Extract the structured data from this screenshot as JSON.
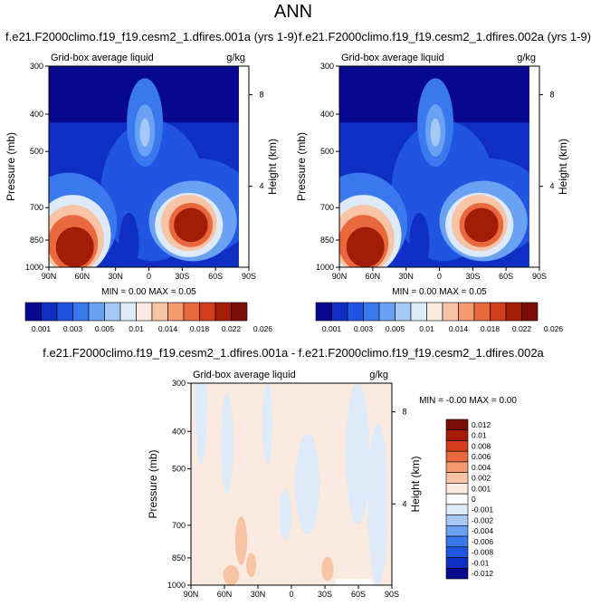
{
  "page_title": "ANN",
  "chart_data": [
    {
      "type": "heatmap",
      "title": "f.e21.F2000climo.f19_f19.cesm2_1.dfires.001a (yrs 1-9)",
      "subtitle_left": "Grid-box average liquid",
      "units": "g/kg",
      "ylabel": "Pressure (mb)",
      "ylabel_right": "Height (km)",
      "x_ticks": [
        "90N",
        "60N",
        "30N",
        "0",
        "30S",
        "60S",
        "90S"
      ],
      "y_ticks": [
        "300",
        "400",
        "500",
        "700",
        "850",
        "1000"
      ],
      "y_right_ticks": [
        "8",
        "4"
      ],
      "min_max_text": "MIN =  0.00  MAX =  0.05",
      "min": 0.0,
      "max": 0.05,
      "colorbar": {
        "orientation": "horizontal",
        "levels": [
          "0.001",
          "0.003",
          "0.005",
          "0.01",
          "0.014",
          "0.018",
          "0.022",
          "0.026"
        ]
      }
    },
    {
      "type": "heatmap",
      "title": "f.e21.F2000climo.f19_f19.cesm2_1.dfires.002a (yrs 1-9)",
      "subtitle_left": "Grid-box average liquid",
      "units": "g/kg",
      "ylabel": "Pressure (mb)",
      "ylabel_right": "Height (km)",
      "x_ticks": [
        "90N",
        "60N",
        "30N",
        "0",
        "30S",
        "60S",
        "90S"
      ],
      "y_ticks": [
        "300",
        "400",
        "500",
        "700",
        "850",
        "1000"
      ],
      "y_right_ticks": [
        "8",
        "4"
      ],
      "min_max_text": "MIN =  0.00  MAX =  0.05",
      "min": 0.0,
      "max": 0.05,
      "colorbar": {
        "orientation": "horizontal",
        "levels": [
          "0.001",
          "0.003",
          "0.005",
          "0.01",
          "0.014",
          "0.018",
          "0.022",
          "0.026"
        ]
      }
    },
    {
      "type": "heatmap",
      "title": "f.e21.F2000climo.f19_f19.cesm2_1.dfires.001a - f.e21.F2000climo.f19_f19.cesm2_1.dfires.002a",
      "subtitle_left": "Grid-box average liquid",
      "units": "g/kg",
      "ylabel": "Pressure (mb)",
      "ylabel_right": "Height (km)",
      "x_ticks": [
        "90N",
        "60N",
        "30N",
        "0",
        "30S",
        "60S",
        "90S"
      ],
      "y_ticks": [
        "300",
        "400",
        "500",
        "700",
        "850",
        "1000"
      ],
      "y_right_ticks": [
        "8",
        "4"
      ],
      "min_max_text": "MIN = -0.00  MAX =  0.00",
      "min": -0.0,
      "max": 0.0,
      "colorbar": {
        "orientation": "vertical",
        "levels": [
          "0.012",
          "0.01",
          "0.008",
          "0.006",
          "0.004",
          "0.002",
          "0.001",
          "0",
          "-0.001",
          "-0.002",
          "-0.004",
          "-0.006",
          "-0.008",
          "-0.01",
          "-0.012"
        ]
      }
    }
  ],
  "colors": {
    "abs_scale": [
      "#08088e",
      "#0f2fc4",
      "#1f55e0",
      "#3a78ee",
      "#6aa1f2",
      "#a6c8f5",
      "#dceaf9",
      "#fbeadf",
      "#f9c4a6",
      "#f49a70",
      "#e9683e",
      "#d43d1a",
      "#a41c08",
      "#7c0c04"
    ],
    "diff_scale": [
      "#7c0c04",
      "#a41c08",
      "#d43d1a",
      "#e9683e",
      "#f49a70",
      "#f9c4a6",
      "#fbeadf",
      "#ffffff",
      "#dceaf9",
      "#a6c8f5",
      "#6aa1f2",
      "#3a78ee",
      "#1f55e0",
      "#0f2fc4",
      "#08088e"
    ]
  }
}
